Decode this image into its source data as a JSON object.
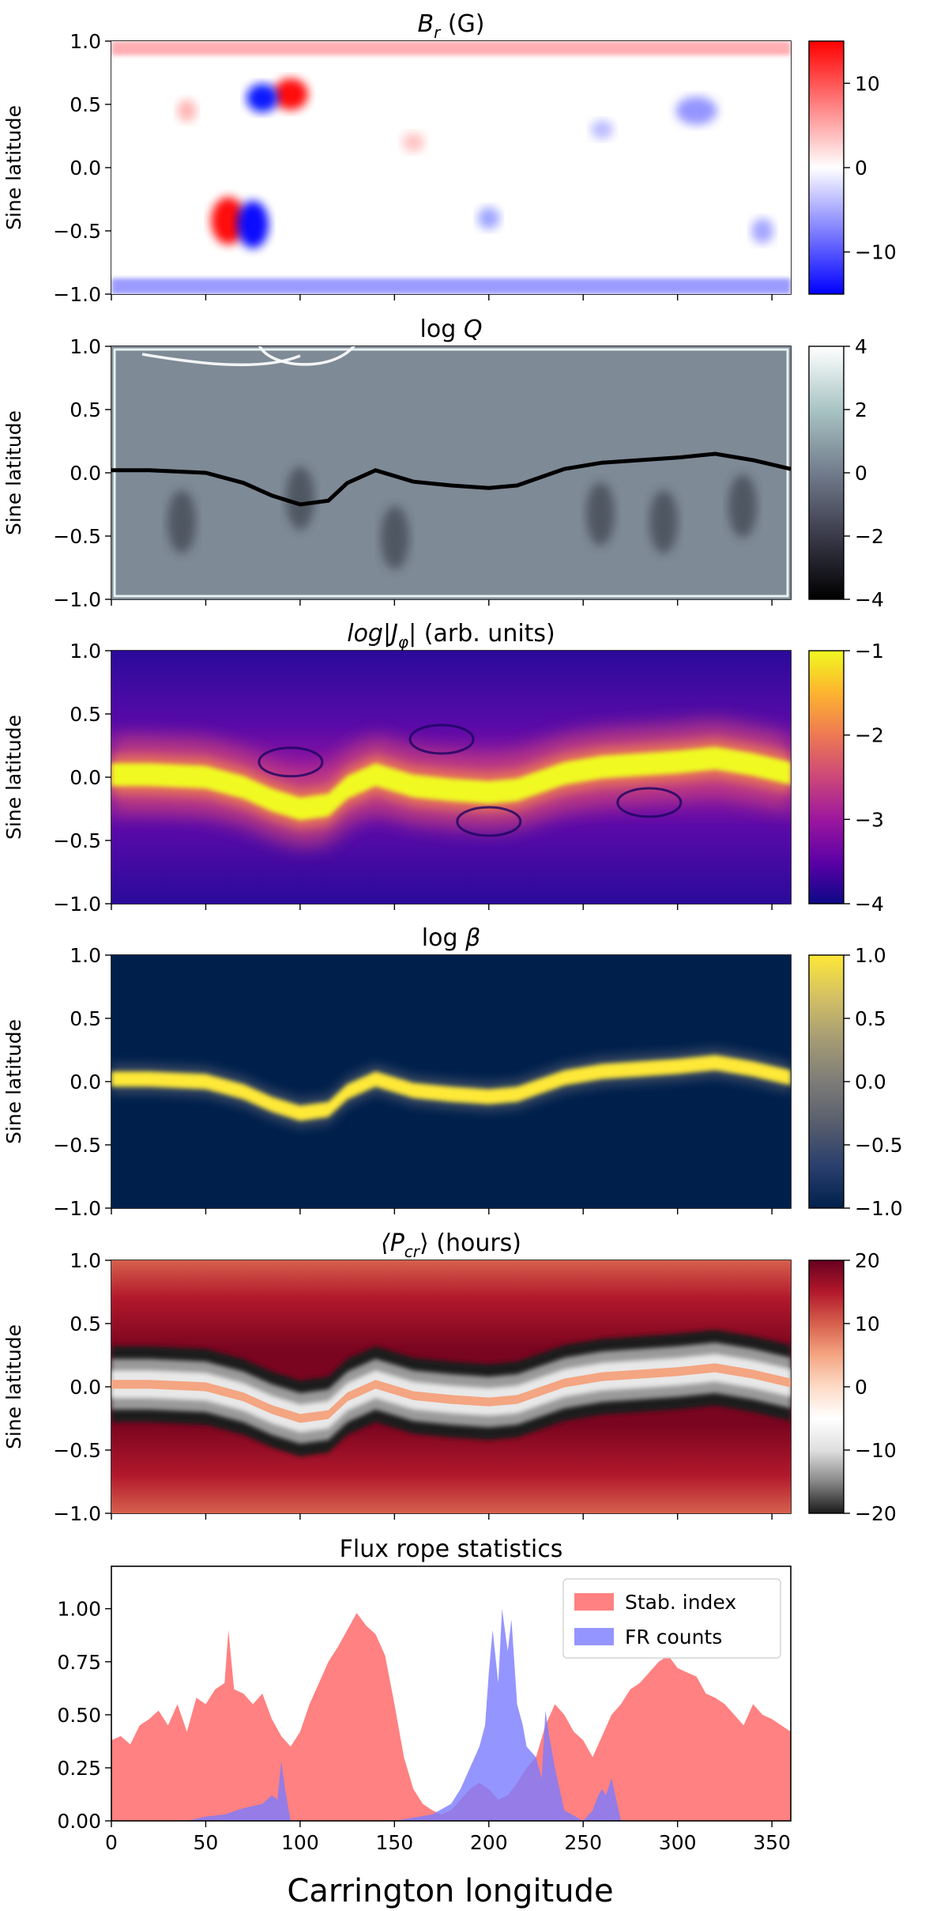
{
  "figure": {
    "xlabel": "Carrington longitude"
  },
  "chart_data": [
    {
      "type": "heatmap",
      "title": "B_r (G)",
      "title_main": "B",
      "title_sub": "r",
      "title_tail": " (G)",
      "ylabel": "Sine latitude",
      "ylim": [
        -1.0,
        1.0
      ],
      "xlim": [
        0,
        360
      ],
      "yticks": [
        "1.0",
        "0.5",
        "0.0",
        "−0.5",
        "−1.0"
      ],
      "colormap": "bwr",
      "colorbar": {
        "range": [
          -15,
          15
        ],
        "ticks": [
          "10",
          "0",
          "−10"
        ],
        "tick_values": [
          10,
          0,
          -10
        ]
      }
    },
    {
      "type": "heatmap",
      "title": "log Q",
      "title_main": "log ",
      "title_italic": "Q",
      "ylabel": "Sine latitude",
      "ylim": [
        -1.0,
        1.0
      ],
      "xlim": [
        0,
        360
      ],
      "yticks": [
        "1.0",
        "0.5",
        "0.0",
        "−0.5",
        "−1.0"
      ],
      "colormap": "bone",
      "colorbar": {
        "range": [
          -4,
          4
        ],
        "ticks": [
          "4",
          "2",
          "0",
          "−2",
          "−4"
        ],
        "tick_values": [
          4,
          2,
          0,
          -2,
          -4
        ]
      }
    },
    {
      "type": "heatmap",
      "title": "log|J_φ| (arb. units)",
      "title_main": "log|J",
      "title_sub": "φ",
      "title_tail": "| (arb. units)",
      "ylabel": "Sine latitude",
      "ylim": [
        -1.0,
        1.0
      ],
      "xlim": [
        0,
        360
      ],
      "yticks": [
        "1.0",
        "0.5",
        "0.0",
        "−0.5",
        "−1.0"
      ],
      "colormap": "plasma",
      "colorbar": {
        "range": [
          -4,
          -1
        ],
        "ticks": [
          "−1",
          "−2",
          "−3",
          "−4"
        ],
        "tick_values": [
          -1,
          -2,
          -3,
          -4
        ]
      }
    },
    {
      "type": "heatmap",
      "title": "log β",
      "title_main": "log ",
      "title_italic": "β",
      "ylabel": "Sine latitude",
      "ylim": [
        -1.0,
        1.0
      ],
      "xlim": [
        0,
        360
      ],
      "yticks": [
        "1.0",
        "0.5",
        "0.0",
        "−0.5",
        "−1.0"
      ],
      "colormap": "cividis",
      "colorbar": {
        "range": [
          -1,
          1
        ],
        "ticks": [
          "1.0",
          "0.5",
          "0.0",
          "−0.5",
          "−1.0"
        ],
        "tick_values": [
          1,
          0.5,
          0,
          -0.5,
          -1
        ]
      }
    },
    {
      "type": "heatmap",
      "title": "⟨P_cr⟩ (hours)",
      "title_main": "⟨P",
      "title_sub": "cr",
      "title_tail": "⟩ (hours)",
      "ylabel": "Sine latitude",
      "ylim": [
        -1.0,
        1.0
      ],
      "xlim": [
        0,
        360
      ],
      "yticks": [
        "1.0",
        "0.5",
        "0.0",
        "−0.5",
        "−1.0"
      ],
      "colormap": "RdGy_r",
      "colorbar": {
        "range": [
          -20,
          20
        ],
        "ticks": [
          "20",
          "10",
          "0",
          "−10",
          "−20"
        ],
        "tick_values": [
          20,
          10,
          0,
          -10,
          -20
        ]
      }
    },
    {
      "type": "area",
      "title": "Flux rope statistics",
      "xlabel": "Carrington longitude",
      "xlim": [
        0,
        360
      ],
      "ylim": [
        0,
        1.2
      ],
      "xticks": [
        "0",
        "50",
        "100",
        "150",
        "200",
        "250",
        "300",
        "350"
      ],
      "yticks": [
        "0.00",
        "0.25",
        "0.50",
        "0.75",
        "1.00"
      ],
      "legend_position": "top-right",
      "series": [
        {
          "name": "Stab. index",
          "color": "#ff7a7a",
          "x": [
            0,
            5,
            10,
            15,
            20,
            25,
            30,
            35,
            40,
            45,
            50,
            55,
            60,
            62,
            65,
            70,
            75,
            80,
            85,
            90,
            95,
            100,
            105,
            110,
            115,
            120,
            125,
            130,
            135,
            140,
            145,
            150,
            155,
            160,
            165,
            170,
            175,
            180,
            185,
            190,
            195,
            200,
            205,
            210,
            215,
            220,
            225,
            230,
            235,
            240,
            245,
            250,
            255,
            260,
            265,
            270,
            275,
            280,
            285,
            290,
            295,
            300,
            305,
            310,
            315,
            320,
            325,
            330,
            335,
            340,
            345,
            350,
            355,
            360
          ],
          "y": [
            0.38,
            0.4,
            0.36,
            0.45,
            0.48,
            0.52,
            0.45,
            0.55,
            0.42,
            0.58,
            0.55,
            0.62,
            0.65,
            0.9,
            0.62,
            0.6,
            0.55,
            0.6,
            0.48,
            0.4,
            0.35,
            0.42,
            0.55,
            0.65,
            0.75,
            0.82,
            0.9,
            0.98,
            0.92,
            0.88,
            0.78,
            0.55,
            0.3,
            0.15,
            0.08,
            0.05,
            0.03,
            0.05,
            0.1,
            0.15,
            0.18,
            0.15,
            0.1,
            0.12,
            0.18,
            0.25,
            0.3,
            0.45,
            0.55,
            0.5,
            0.42,
            0.38,
            0.3,
            0.4,
            0.5,
            0.55,
            0.62,
            0.65,
            0.7,
            0.75,
            0.78,
            0.72,
            0.7,
            0.68,
            0.6,
            0.58,
            0.55,
            0.5,
            0.45,
            0.55,
            0.5,
            0.48,
            0.45,
            0.42
          ]
        },
        {
          "name": "FR counts",
          "color": "#7a7aff",
          "x": [
            0,
            30,
            40,
            50,
            60,
            70,
            80,
            85,
            88,
            90,
            92,
            95,
            100,
            150,
            170,
            180,
            185,
            190,
            195,
            198,
            200,
            202,
            205,
            207,
            210,
            212,
            215,
            218,
            220,
            225,
            228,
            230,
            232,
            235,
            240,
            250,
            255,
            258,
            260,
            262,
            265,
            270,
            300,
            360
          ],
          "y": [
            0,
            0,
            0,
            0.02,
            0.03,
            0.06,
            0.08,
            0.12,
            0.1,
            0.28,
            0.15,
            0.0,
            0,
            0,
            0.03,
            0.08,
            0.15,
            0.25,
            0.35,
            0.45,
            0.7,
            0.9,
            0.65,
            1.0,
            0.8,
            0.95,
            0.55,
            0.45,
            0.35,
            0.3,
            0.2,
            0.52,
            0.4,
            0.25,
            0.05,
            0.0,
            0.05,
            0.12,
            0.15,
            0.12,
            0.2,
            0.0,
            0,
            0
          ]
        }
      ]
    }
  ]
}
